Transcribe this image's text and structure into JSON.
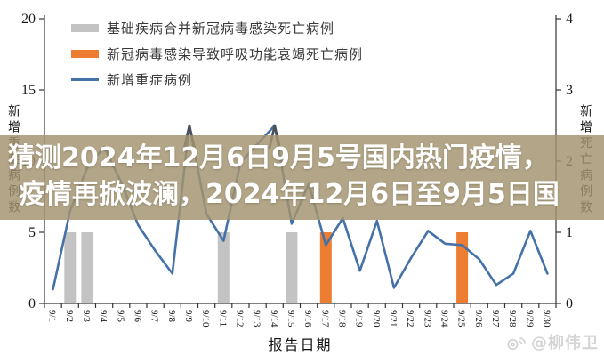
{
  "banner": {
    "line1": "猜测2024年12月6日9月5号国内热门疫情，",
    "line2": "疫情再掀波澜，2024年12月6日至9月5日国",
    "background": "rgba(163,148,112,0.83)",
    "text_color": "#ffffff"
  },
  "watermark": {
    "icon": "weibo-eye-icon",
    "text": "@柳伟卫",
    "color": "#d5d5d5"
  },
  "colors": {
    "line_blue": "#4472a8",
    "bar_gray": "#c3c3c3",
    "bar_orange": "#ed7d31",
    "peak_dark": "#4b4f57",
    "axis": "#333333",
    "background": "#ffffff"
  },
  "chart_data": {
    "type": "bar",
    "subtype": "combo-bar-line",
    "title": "",
    "grid": false,
    "legend_position": "top-left",
    "categories": [
      "9/1",
      "9/2",
      "9/3",
      "9/4",
      "9/5",
      "9/6",
      "9/7",
      "9/8",
      "9/9",
      "9/10",
      "9/11",
      "9/12",
      "9/13",
      "9/14",
      "9/15",
      "9/16",
      "9/17",
      "9/18",
      "9/19",
      "9/20",
      "9/21",
      "9/22",
      "9/23",
      "9/24",
      "9/25",
      "9/26",
      "9/27",
      "9/28",
      "9/29",
      "9/30"
    ],
    "x_axis": {
      "title": "报告日期"
    },
    "left_axis": {
      "title": "新增重症病例数",
      "range": [
        0,
        20
      ],
      "ticks": [
        0,
        5,
        10,
        15,
        20
      ]
    },
    "right_axis": {
      "title": "新增死亡病例数",
      "range": [
        0,
        4
      ],
      "ticks": [
        0,
        1,
        2,
        3,
        4
      ]
    },
    "series": [
      {
        "name": "基础疾病合并新冠病毒感染死亡病例",
        "type": "bar",
        "axis": "right",
        "color": "#c3c3c3",
        "values": [
          0,
          1,
          1,
          0,
          0,
          0,
          0,
          0,
          0,
          0,
          1,
          0,
          0,
          0,
          1,
          0,
          0,
          0,
          0,
          0,
          0,
          0,
          0,
          0,
          0,
          0,
          0,
          0,
          0,
          0
        ]
      },
      {
        "name": "新冠病毒感染导致呼吸功能衰竭死亡病例",
        "type": "bar",
        "axis": "right",
        "color": "#ed7d31",
        "values": [
          0,
          0,
          0,
          0,
          0,
          0,
          0,
          0,
          0,
          0,
          0,
          0,
          0,
          0,
          0,
          0,
          1,
          0,
          0,
          0,
          0,
          0,
          0,
          0,
          1,
          0,
          0,
          0,
          0,
          0
        ]
      },
      {
        "name": "新增重症病例",
        "type": "line",
        "axis": "left",
        "color": "#4472a8",
        "values": [
          1.0,
          6.5,
          9.5,
          11.0,
          8.5,
          5.5,
          3.7,
          2.1,
          12.5,
          6.3,
          4.4,
          9.9,
          11.2,
          12.5,
          5.6,
          8.4,
          4.1,
          6.0,
          2.3,
          5.8,
          1.1,
          3.2,
          5.1,
          4.2,
          4.1,
          3.1,
          1.3,
          2.1,
          5.1,
          2.1
        ]
      }
    ]
  }
}
